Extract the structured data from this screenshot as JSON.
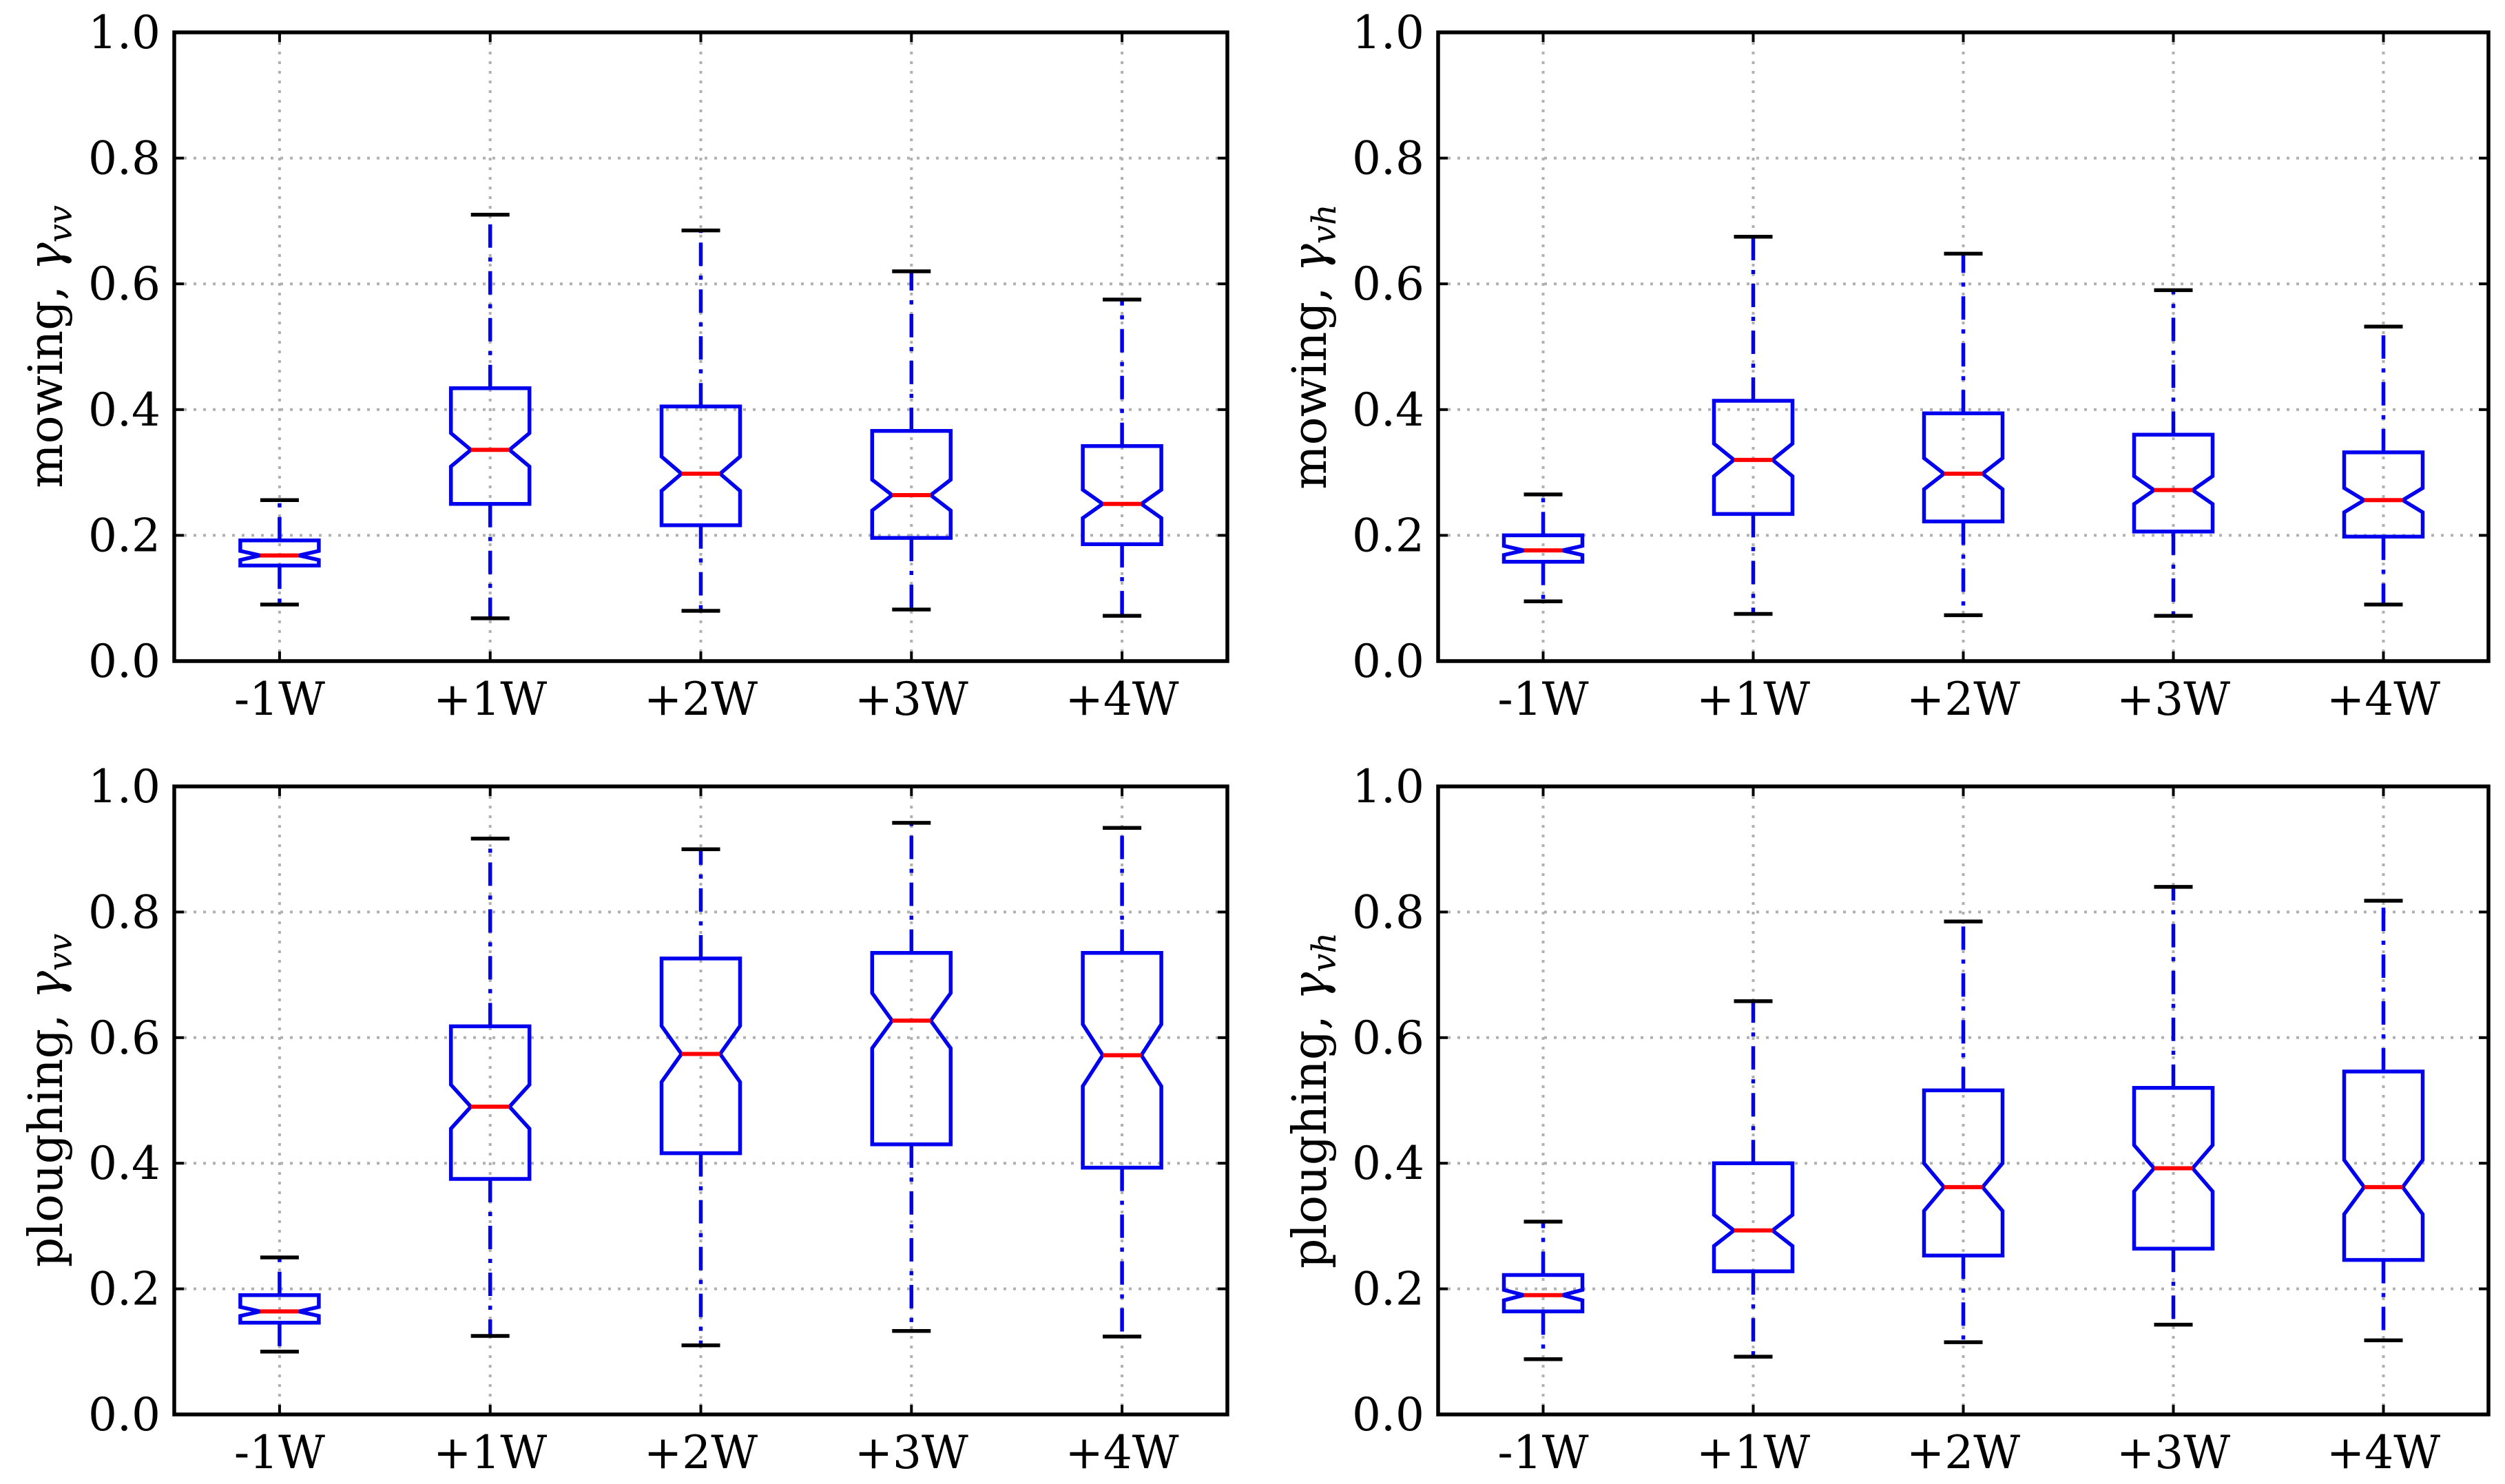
{
  "chart_data": [
    {
      "type": "boxplot",
      "id": "panel-mowing-vv",
      "ylabel_main": "mowing, ",
      "ylabel_symbol": "γ",
      "ylabel_sub": "vv",
      "categories": [
        "-1W",
        "+1W",
        "+2W",
        "+3W",
        "+4W"
      ],
      "ylim": [
        0,
        1
      ],
      "yticks": [
        "0.0",
        "0.2",
        "0.4",
        "0.6",
        "0.8",
        "1.0"
      ],
      "grid": true,
      "boxes": [
        {
          "whislo": 0.09,
          "q1": 0.152,
          "med": 0.168,
          "q3": 0.192,
          "whishi": 0.256
        },
        {
          "whislo": 0.068,
          "q1": 0.25,
          "med": 0.336,
          "q3": 0.434,
          "whishi": 0.71
        },
        {
          "whislo": 0.08,
          "q1": 0.216,
          "med": 0.298,
          "q3": 0.405,
          "whishi": 0.685
        },
        {
          "whislo": 0.082,
          "q1": 0.196,
          "med": 0.264,
          "q3": 0.366,
          "whishi": 0.62
        },
        {
          "whislo": 0.072,
          "q1": 0.186,
          "med": 0.25,
          "q3": 0.342,
          "whishi": 0.575
        }
      ]
    },
    {
      "type": "boxplot",
      "id": "panel-mowing-vh",
      "ylabel_main": "mowing, ",
      "ylabel_symbol": "γ",
      "ylabel_sub": "vh",
      "categories": [
        "-1W",
        "+1W",
        "+2W",
        "+3W",
        "+4W"
      ],
      "ylim": [
        0,
        1
      ],
      "yticks": [
        "0.0",
        "0.2",
        "0.4",
        "0.6",
        "0.8",
        "1.0"
      ],
      "grid": true,
      "boxes": [
        {
          "whislo": 0.095,
          "q1": 0.158,
          "med": 0.176,
          "q3": 0.2,
          "whishi": 0.265
        },
        {
          "whislo": 0.075,
          "q1": 0.234,
          "med": 0.32,
          "q3": 0.414,
          "whishi": 0.675
        },
        {
          "whislo": 0.073,
          "q1": 0.222,
          "med": 0.298,
          "q3": 0.394,
          "whishi": 0.648
        },
        {
          "whislo": 0.072,
          "q1": 0.206,
          "med": 0.272,
          "q3": 0.36,
          "whishi": 0.59
        },
        {
          "whislo": 0.09,
          "q1": 0.198,
          "med": 0.256,
          "q3": 0.332,
          "whishi": 0.532
        }
      ]
    },
    {
      "type": "boxplot",
      "id": "panel-ploughing-vv",
      "ylabel_main": "ploughing, ",
      "ylabel_symbol": "γ",
      "ylabel_sub": "vv",
      "categories": [
        "-1W",
        "+1W",
        "+2W",
        "+3W",
        "+4W"
      ],
      "ylim": [
        0,
        1
      ],
      "yticks": [
        "0.0",
        "0.2",
        "0.4",
        "0.6",
        "0.8",
        "1.0"
      ],
      "grid": true,
      "boxes": [
        {
          "whislo": 0.1,
          "q1": 0.146,
          "med": 0.164,
          "q3": 0.19,
          "whishi": 0.25
        },
        {
          "whislo": 0.125,
          "q1": 0.375,
          "med": 0.49,
          "q3": 0.618,
          "whishi": 0.917
        },
        {
          "whislo": 0.11,
          "q1": 0.416,
          "med": 0.574,
          "q3": 0.726,
          "whishi": 0.9
        },
        {
          "whislo": 0.133,
          "q1": 0.43,
          "med": 0.627,
          "q3": 0.735,
          "whishi": 0.942
        },
        {
          "whislo": 0.124,
          "q1": 0.393,
          "med": 0.572,
          "q3": 0.735,
          "whishi": 0.934
        }
      ]
    },
    {
      "type": "boxplot",
      "id": "panel-ploughing-vh",
      "ylabel_main": "ploughing, ",
      "ylabel_symbol": "γ",
      "ylabel_sub": "vh",
      "categories": [
        "-1W",
        "+1W",
        "+2W",
        "+3W",
        "+4W"
      ],
      "ylim": [
        0,
        1
      ],
      "yticks": [
        "0.0",
        "0.2",
        "0.4",
        "0.6",
        "0.8",
        "1.0"
      ],
      "grid": true,
      "boxes": [
        {
          "whislo": 0.088,
          "q1": 0.164,
          "med": 0.19,
          "q3": 0.222,
          "whishi": 0.307
        },
        {
          "whislo": 0.092,
          "q1": 0.228,
          "med": 0.293,
          "q3": 0.4,
          "whishi": 0.658
        },
        {
          "whislo": 0.115,
          "q1": 0.253,
          "med": 0.362,
          "q3": 0.516,
          "whishi": 0.785
        },
        {
          "whislo": 0.143,
          "q1": 0.264,
          "med": 0.392,
          "q3": 0.52,
          "whishi": 0.84
        },
        {
          "whislo": 0.118,
          "q1": 0.246,
          "med": 0.362,
          "q3": 0.546,
          "whishi": 0.818
        }
      ]
    }
  ],
  "colors": {
    "box": "#0000ee",
    "median": "#ff0000",
    "cap": "#000000",
    "grid": "#b0b0b0"
  }
}
